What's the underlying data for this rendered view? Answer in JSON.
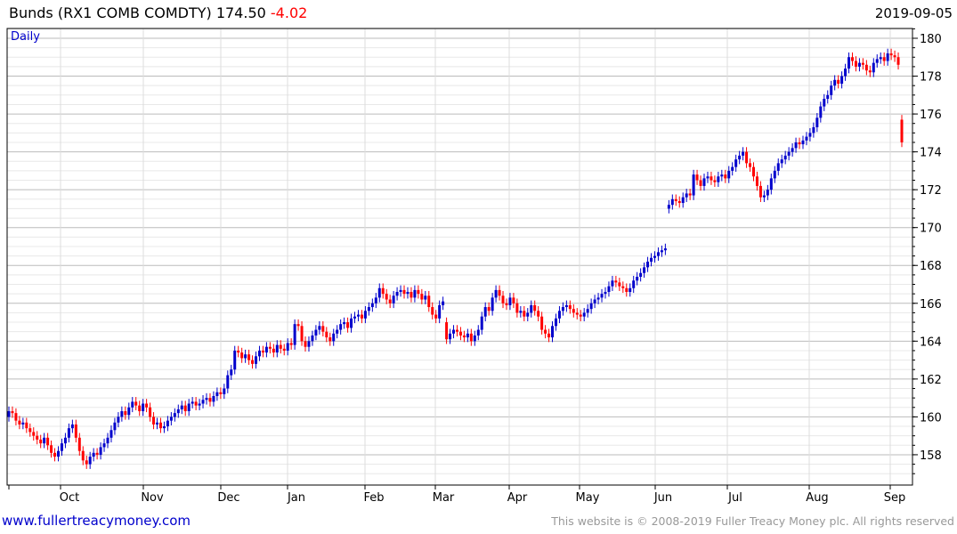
{
  "header": {
    "title": "Bunds (RX1 COMB COMDTY) 174.50",
    "change": "-4.02",
    "date": "2019-09-05",
    "period": "Daily"
  },
  "footer": {
    "link": "www.fullertreacymoney.com",
    "copyright": "This website is © 2008-2019 Fuller Treacy Money plc. All rights reserved"
  },
  "colors": {
    "up": "#0000cc",
    "down": "#ff0000",
    "title_change": "#ff0000",
    "link": "#0000cc"
  },
  "chart_data": {
    "type": "candlestick",
    "title": "Bunds (RX1 COMB COMDTY)",
    "ylim": [
      156.6,
      181.0
    ],
    "y_ticks": [
      "158",
      "160",
      "162",
      "164",
      "166",
      "168",
      "170",
      "172",
      "174",
      "176",
      "178",
      "180"
    ],
    "x_ticks": [
      "Oct",
      "Nov",
      "Dec",
      "Jan",
      "Feb",
      "Mar",
      "Apr",
      "May",
      "Jun",
      "Jul",
      "Aug",
      "Sep"
    ],
    "grid": true,
    "first_open": 160.0,
    "open_overrides": {
      "124": 165.0,
      "187": 171.0,
      "253": 175.7
    },
    "closes": [
      160.3,
      160.2,
      159.8,
      159.6,
      159.7,
      159.4,
      159.2,
      159.0,
      158.8,
      158.6,
      158.9,
      158.5,
      158.1,
      157.9,
      158.2,
      158.6,
      158.9,
      159.4,
      159.6,
      158.9,
      158.2,
      157.7,
      157.5,
      157.9,
      158.1,
      158.0,
      158.4,
      158.6,
      158.9,
      159.3,
      159.7,
      160.0,
      160.3,
      160.1,
      160.5,
      160.8,
      160.6,
      160.3,
      160.7,
      160.5,
      160.0,
      159.6,
      159.7,
      159.4,
      159.5,
      159.8,
      160.0,
      160.2,
      160.4,
      160.6,
      160.3,
      160.7,
      160.8,
      160.6,
      160.7,
      160.9,
      161.0,
      160.8,
      161.1,
      161.3,
      161.2,
      161.5,
      162.2,
      162.5,
      163.5,
      163.4,
      163.1,
      163.3,
      163.0,
      162.8,
      163.2,
      163.5,
      163.4,
      163.7,
      163.6,
      163.4,
      163.8,
      163.6,
      163.5,
      163.9,
      163.8,
      164.9,
      164.8,
      164.0,
      163.7,
      164.0,
      164.3,
      164.6,
      164.8,
      164.5,
      164.2,
      164.0,
      164.4,
      164.6,
      164.9,
      165.0,
      164.7,
      165.2,
      165.3,
      165.4,
      165.2,
      165.6,
      165.8,
      166.0,
      166.3,
      166.8,
      166.5,
      166.2,
      166.0,
      166.4,
      166.6,
      166.7,
      166.5,
      166.6,
      166.3,
      166.7,
      166.5,
      166.2,
      166.4,
      165.8,
      165.4,
      165.2,
      165.9,
      166.1,
      164.1,
      164.4,
      164.6,
      164.5,
      164.3,
      164.2,
      164.4,
      164.0,
      164.3,
      164.6,
      165.3,
      165.8,
      165.6,
      166.3,
      166.7,
      166.4,
      166.0,
      165.9,
      166.3,
      166.0,
      165.5,
      165.6,
      165.3,
      165.5,
      165.9,
      165.6,
      165.3,
      164.6,
      164.4,
      164.2,
      164.8,
      165.2,
      165.6,
      165.8,
      165.9,
      165.7,
      165.5,
      165.4,
      165.3,
      165.5,
      165.7,
      166.0,
      166.2,
      166.3,
      166.5,
      166.6,
      166.9,
      167.2,
      167.1,
      166.9,
      166.8,
      166.6,
      166.8,
      167.2,
      167.4,
      167.6,
      167.9,
      168.2,
      168.4,
      168.5,
      168.7,
      168.8,
      168.9,
      171.2,
      171.5,
      171.4,
      171.3,
      171.6,
      171.8,
      171.7,
      172.8,
      172.5,
      172.2,
      172.6,
      172.7,
      172.5,
      172.4,
      172.7,
      172.8,
      172.6,
      173.0,
      173.2,
      173.6,
      173.8,
      174.0,
      173.4,
      173.2,
      172.7,
      172.2,
      171.6,
      171.7,
      172.0,
      172.6,
      173.0,
      173.4,
      173.6,
      173.8,
      174.0,
      174.2,
      174.5,
      174.4,
      174.6,
      174.8,
      175.0,
      175.3,
      175.8,
      176.4,
      176.8,
      177.0,
      177.5,
      177.8,
      177.6,
      178.0,
      178.4,
      179.0,
      178.8,
      178.5,
      178.7,
      178.6,
      178.3,
      178.2,
      178.7,
      178.9,
      179.0,
      178.8,
      179.2,
      179.1,
      179.0,
      178.6,
      174.5
    ]
  }
}
